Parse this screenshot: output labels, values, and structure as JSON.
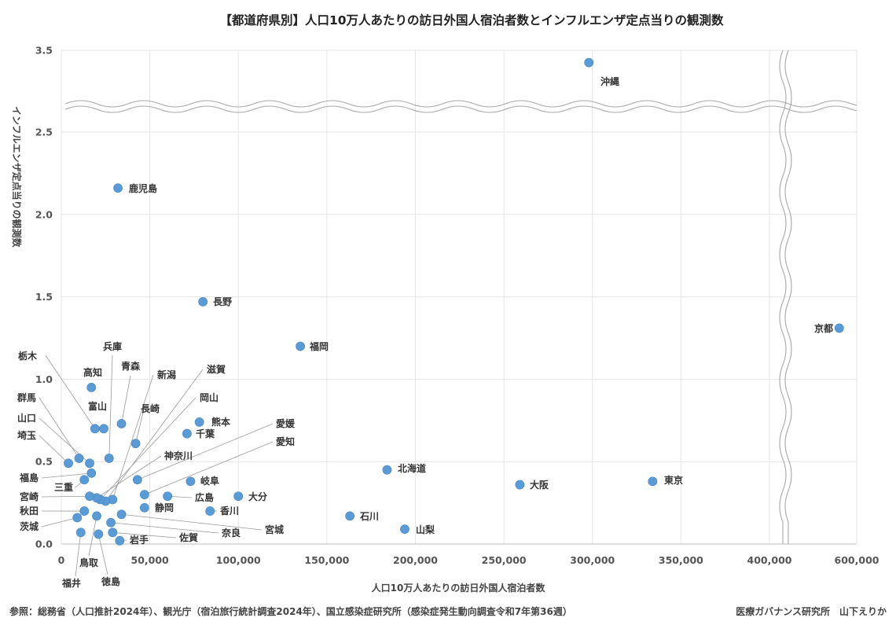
{
  "chart_data": {
    "type": "scatter",
    "title": "【都道府県別】人口10万人あたりの訪日外国人宿泊者数とインフルエンザ定点当りの観測数",
    "xlabel": "人口10万人あたりの訪日外国人宿泊者数",
    "ylabel": "インフルエンザ定点当りの観測数",
    "xlim": [
      0,
      600000
    ],
    "ylim": [
      0,
      3.5
    ],
    "x_ticks": [
      0,
      50000,
      100000,
      150000,
      200000,
      250000,
      300000,
      350000,
      400000,
      600000
    ],
    "x_tick_labels": [
      "0",
      "50,000",
      "100,000",
      "150,000",
      "200,000",
      "250,000",
      "300,000",
      "350,000",
      "400,000",
      "600,000"
    ],
    "y_ticks": [
      0,
      0.5,
      1.0,
      1.5,
      2.0,
      2.5,
      3.5
    ],
    "y_tick_labels": [
      "0.0",
      "0.5",
      "1.0",
      "1.5",
      "2.0",
      "2.5",
      "3.5"
    ],
    "axis_breaks": {
      "y_between": [
        2.5,
        3.5
      ],
      "x_between": [
        400000,
        600000
      ]
    },
    "grid": true,
    "legend": "none",
    "series": [
      {
        "name": "都道府県",
        "points": [
          {
            "name": "沖縄",
            "x": 298000,
            "y": 3.35
          },
          {
            "name": "京都",
            "x": 560000,
            "y": 1.31
          },
          {
            "name": "鹿児島",
            "x": 32000,
            "y": 2.16
          },
          {
            "name": "長野",
            "x": 80000,
            "y": 1.47
          },
          {
            "name": "福岡",
            "x": 135000,
            "y": 1.2
          },
          {
            "name": "北海道",
            "x": 184000,
            "y": 0.45
          },
          {
            "name": "東京",
            "x": 334000,
            "y": 0.38
          },
          {
            "name": "大阪",
            "x": 259000,
            "y": 0.36
          },
          {
            "name": "石川",
            "x": 163000,
            "y": 0.17
          },
          {
            "name": "山梨",
            "x": 194000,
            "y": 0.09
          },
          {
            "name": "熊本",
            "x": 78000,
            "y": 0.74
          },
          {
            "name": "千葉",
            "x": 71000,
            "y": 0.67
          },
          {
            "name": "岐阜",
            "x": 73000,
            "y": 0.38
          },
          {
            "name": "大分",
            "x": 100000,
            "y": 0.29
          },
          {
            "name": "広島",
            "x": 60000,
            "y": 0.29
          },
          {
            "name": "香川",
            "x": 84000,
            "y": 0.2
          },
          {
            "name": "静岡",
            "x": 47000,
            "y": 0.22
          },
          {
            "name": "高知",
            "x": 17000,
            "y": 0.95
          },
          {
            "name": "栃木",
            "x": 19000,
            "y": 0.7
          },
          {
            "name": "富山",
            "x": 24000,
            "y": 0.7
          },
          {
            "name": "青森",
            "x": 34000,
            "y": 0.73
          },
          {
            "name": "兵庫",
            "x": 27000,
            "y": 0.52
          },
          {
            "name": "長崎",
            "x": 42000,
            "y": 0.61
          },
          {
            "name": "新潟",
            "x": 29000,
            "y": 0.27
          },
          {
            "name": "滋賀",
            "x": 25000,
            "y": 0.26
          },
          {
            "name": "岡山",
            "x": 22000,
            "y": 0.27
          },
          {
            "name": "愛媛",
            "x": 43000,
            "y": 0.39
          },
          {
            "name": "愛知",
            "x": 47000,
            "y": 0.3
          },
          {
            "name": "神奈川",
            "x": 20000,
            "y": 0.28
          },
          {
            "name": "群馬",
            "x": 10000,
            "y": 0.52
          },
          {
            "name": "山口",
            "x": 16000,
            "y": 0.49
          },
          {
            "name": "埼玉",
            "x": 4000,
            "y": 0.49
          },
          {
            "name": "福島",
            "x": 17000,
            "y": 0.43
          },
          {
            "name": "三重",
            "x": 13000,
            "y": 0.39
          },
          {
            "name": "宮崎",
            "x": 16000,
            "y": 0.29
          },
          {
            "name": "秋田",
            "x": 13000,
            "y": 0.2
          },
          {
            "name": "茨城",
            "x": 9000,
            "y": 0.16
          },
          {
            "name": "宮城",
            "x": 34000,
            "y": 0.18
          },
          {
            "name": "奈良",
            "x": 28000,
            "y": 0.13
          },
          {
            "name": "佐賀",
            "x": 29000,
            "y": 0.07
          },
          {
            "name": "岩手",
            "x": 33000,
            "y": 0.02
          },
          {
            "name": "鳥取",
            "x": 20000,
            "y": 0.17
          },
          {
            "name": "福井",
            "x": 11000,
            "y": 0.07
          },
          {
            "name": "徳島",
            "x": 21000,
            "y": 0.06
          }
        ]
      }
    ],
    "labels_position": "right of point for isolated points; leader lines for the dense cluster near the origin"
  },
  "footer": {
    "source": "参照：総務省（人口推計2024年）、観光庁（宿泊旅行統計調査2024年）、国立感染症研究所（感染症発生動向調査令和7年第36週）",
    "author": "医療ガバナンス研究所　山下えりか"
  },
  "colors": {
    "point": "#5b9bd5",
    "grid": "#e6e6e6",
    "leader": "#9a9a9a",
    "break_line": "#a8a8a8"
  }
}
